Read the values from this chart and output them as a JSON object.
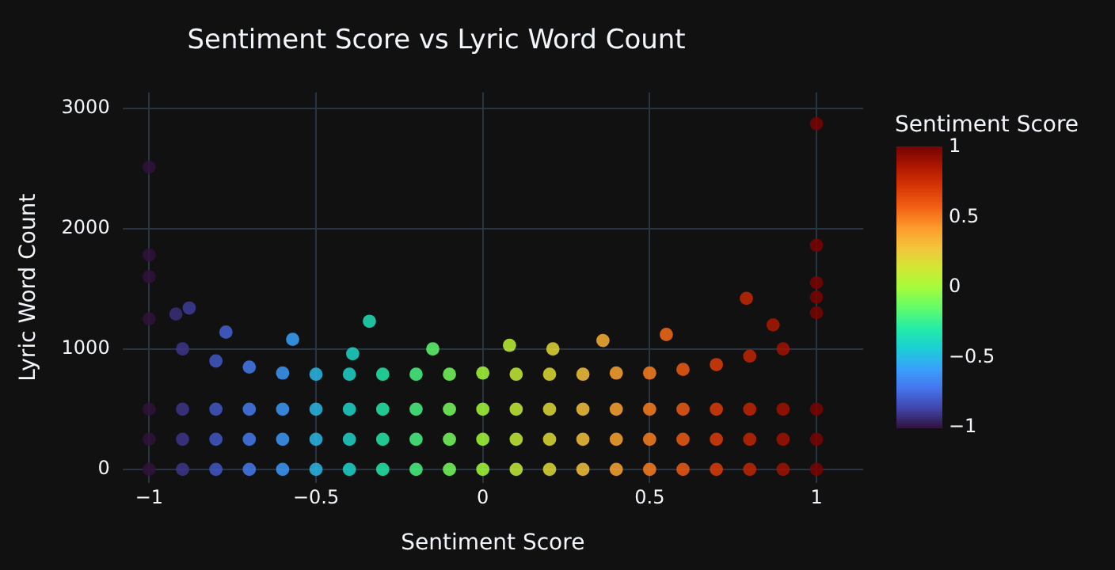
{
  "chart_data": {
    "type": "scatter",
    "title": "Sentiment Score vs Lyric Word Count",
    "xlabel": "Sentiment Score",
    "ylabel": "Lyric Word Count",
    "clabel": "Sentiment Score",
    "xlim": [
      -1.08,
      1.14
    ],
    "ylim": [
      -110,
      3130
    ],
    "xticks": [
      {
        "value": -1,
        "label": "−1"
      },
      {
        "value": -0.5,
        "label": "−0.5"
      },
      0,
      0.5,
      1
    ],
    "yticks": [
      0,
      1000,
      2000,
      3000
    ],
    "clim": [
      -1,
      1
    ],
    "cticks": [
      {
        "value": -1,
        "label": "−1"
      },
      {
        "value": -0.5,
        "label": "−0.5"
      },
      0,
      0.5,
      1
    ],
    "grid": true,
    "legend": false,
    "marker": "circle",
    "series": [
      {
        "x": [
          -1,
          -1,
          -1,
          -1,
          -0.9,
          -0.9,
          -0.9,
          -0.9,
          -0.8,
          -0.8,
          -0.8,
          -0.8,
          -0.7,
          -0.7,
          -0.7,
          -0.7,
          -0.6,
          -0.6,
          -0.6,
          -0.6,
          -0.5,
          -0.5,
          -0.5,
          -0.5,
          -0.4,
          -0.4,
          -0.4,
          -0.4,
          -0.3,
          -0.3,
          -0.3,
          -0.3,
          -0.2,
          -0.2,
          -0.2,
          -0.2,
          -0.1,
          -0.1,
          -0.1,
          -0.1,
          0,
          0,
          0,
          0,
          0.1,
          0.1,
          0.1,
          0.1,
          0.2,
          0.2,
          0.2,
          0.2,
          0.3,
          0.3,
          0.3,
          0.3,
          0.4,
          0.4,
          0.4,
          0.4,
          0.5,
          0.5,
          0.5,
          0.5,
          0.6,
          0.6,
          0.6,
          0.6,
          0.7,
          0.7,
          0.7,
          0.7,
          0.8,
          0.8,
          0.8,
          0.8,
          0.9,
          0.9,
          0.9,
          0.9,
          1,
          1,
          1,
          1,
          -1,
          -1,
          -1,
          -0.88,
          -0.92,
          -0.77,
          -0.34,
          -0.57,
          -0.39,
          -0.15,
          0.08,
          0.21,
          0.36,
          0.55,
          0.79,
          0.87,
          1,
          1,
          1,
          1
        ],
        "values": [
          0,
          250,
          500,
          1250,
          0,
          250,
          500,
          1000,
          0,
          250,
          500,
          900,
          0,
          250,
          500,
          850,
          0,
          250,
          500,
          800,
          0,
          250,
          500,
          790,
          0,
          250,
          500,
          790,
          0,
          250,
          500,
          790,
          0,
          250,
          500,
          790,
          0,
          250,
          500,
          790,
          0,
          250,
          500,
          800,
          0,
          250,
          500,
          790,
          0,
          250,
          500,
          790,
          0,
          250,
          500,
          790,
          0,
          250,
          500,
          800,
          0,
          250,
          500,
          800,
          0,
          250,
          500,
          830,
          0,
          250,
          500,
          870,
          0,
          250,
          500,
          940,
          0,
          250,
          500,
          1000,
          0,
          250,
          500,
          1300,
          2510,
          1780,
          1600,
          1340,
          1290,
          1140,
          1230,
          1080,
          960,
          1000,
          1030,
          1000,
          1070,
          1120,
          1420,
          1200,
          2870,
          1860,
          1430,
          1550
        ],
        "cvalues": [
          -1,
          -1,
          -1,
          -1,
          -0.9,
          -0.9,
          -0.9,
          -0.9,
          -0.8,
          -0.8,
          -0.8,
          -0.8,
          -0.7,
          -0.7,
          -0.7,
          -0.7,
          -0.6,
          -0.6,
          -0.6,
          -0.6,
          -0.5,
          -0.5,
          -0.5,
          -0.5,
          -0.4,
          -0.4,
          -0.4,
          -0.4,
          -0.3,
          -0.3,
          -0.3,
          -0.3,
          -0.2,
          -0.2,
          -0.2,
          -0.2,
          -0.1,
          -0.1,
          -0.1,
          -0.1,
          0,
          0,
          0,
          0,
          0.1,
          0.1,
          0.1,
          0.1,
          0.2,
          0.2,
          0.2,
          0.2,
          0.3,
          0.3,
          0.3,
          0.3,
          0.4,
          0.4,
          0.4,
          0.4,
          0.5,
          0.5,
          0.5,
          0.5,
          0.6,
          0.6,
          0.6,
          0.6,
          0.7,
          0.7,
          0.7,
          0.7,
          0.8,
          0.8,
          0.8,
          0.8,
          0.9,
          0.9,
          0.9,
          0.9,
          1,
          1,
          1,
          1,
          -1,
          -1,
          -1,
          -0.88,
          -0.92,
          -0.77,
          -0.34,
          -0.57,
          -0.39,
          -0.15,
          0.08,
          0.21,
          0.36,
          0.55,
          0.79,
          0.87,
          1,
          1,
          1,
          1
        ]
      }
    ]
  }
}
